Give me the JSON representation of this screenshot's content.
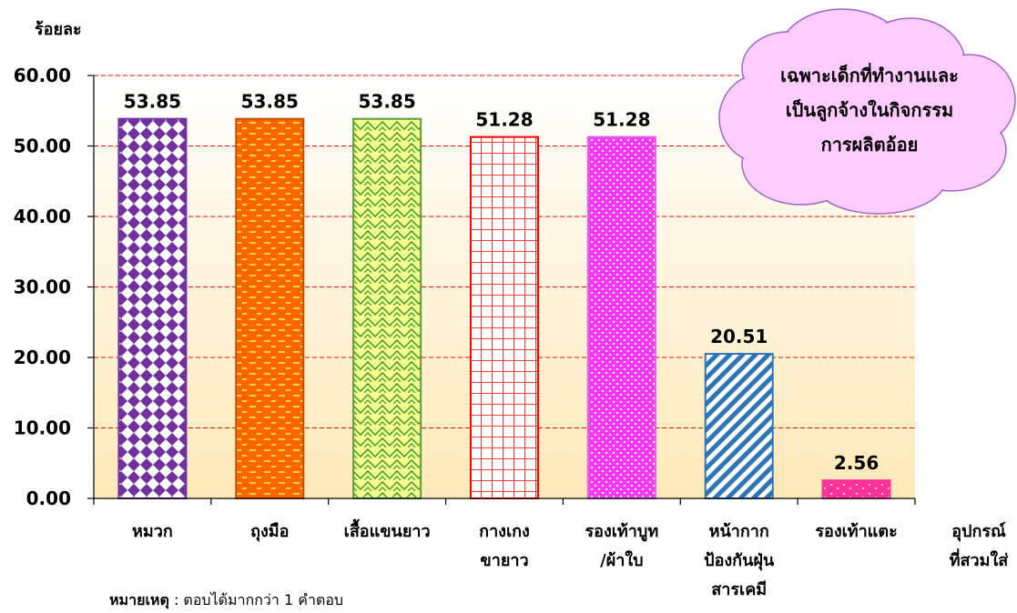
{
  "chart_data": {
    "type": "bar",
    "ylabel": "ร้อยละ",
    "xlabel": "อุปกรณ์\nที่สวมใส่",
    "ylim": [
      0,
      60
    ],
    "yticks": [
      "0.00",
      "10.00",
      "20.00",
      "30.00",
      "40.00",
      "50.00",
      "60.00"
    ],
    "gridlines": true,
    "categories": [
      "หมวก",
      "ถุงมือ",
      "เสื้อแขนยาว",
      "กางเกง\nขายาว",
      "รองเท้าบูท\n/ผ้าใบ",
      "หน้ากาก\nป้องกันฝุ่น\nสารเคมี",
      "รองเท้าแตะ"
    ],
    "values": [
      53.85,
      53.85,
      53.85,
      51.28,
      51.28,
      20.51,
      2.56
    ],
    "data_labels": [
      "53.85",
      "53.85",
      "53.85",
      "51.28",
      "51.28",
      "20.51",
      "2.56"
    ],
    "bar_styles": [
      {
        "pattern": "diamonds",
        "color": "#7030A0",
        "border": "#7030A0"
      },
      {
        "pattern": "dashes",
        "color": "#FF6600",
        "border": "#C05000"
      },
      {
        "pattern": "waves",
        "color": "#339933",
        "border": "#5A9E3A"
      },
      {
        "pattern": "grid",
        "color": "#FF0000",
        "border": "#FF0000"
      },
      {
        "pattern": "dots",
        "color": "#FF33FF",
        "border": "#E060E0"
      },
      {
        "pattern": "stripes",
        "color": "#2E75B6",
        "border": "#2E75B6"
      },
      {
        "pattern": "specks",
        "color": "#FF3399",
        "border": "#FF3399"
      }
    ],
    "annotation": {
      "lines": [
        "เฉพาะเด็กที่ทำงานและ",
        "เป็นลูกจ้างในกิจกรรม",
        "การผลิตอ้อย"
      ],
      "fill": "#FFCCFF",
      "stroke": "#9966CC"
    }
  },
  "footnote": {
    "bold": "หมายเหตุ",
    "text": " : ตอบได้มากกว่า 1 คำตอบ"
  },
  "colors": {
    "plot_bg_top": "#FFFFFF",
    "plot_bg_bottom": "#FFE9B8",
    "gridline": "#FF0000",
    "axis": "#000000"
  }
}
